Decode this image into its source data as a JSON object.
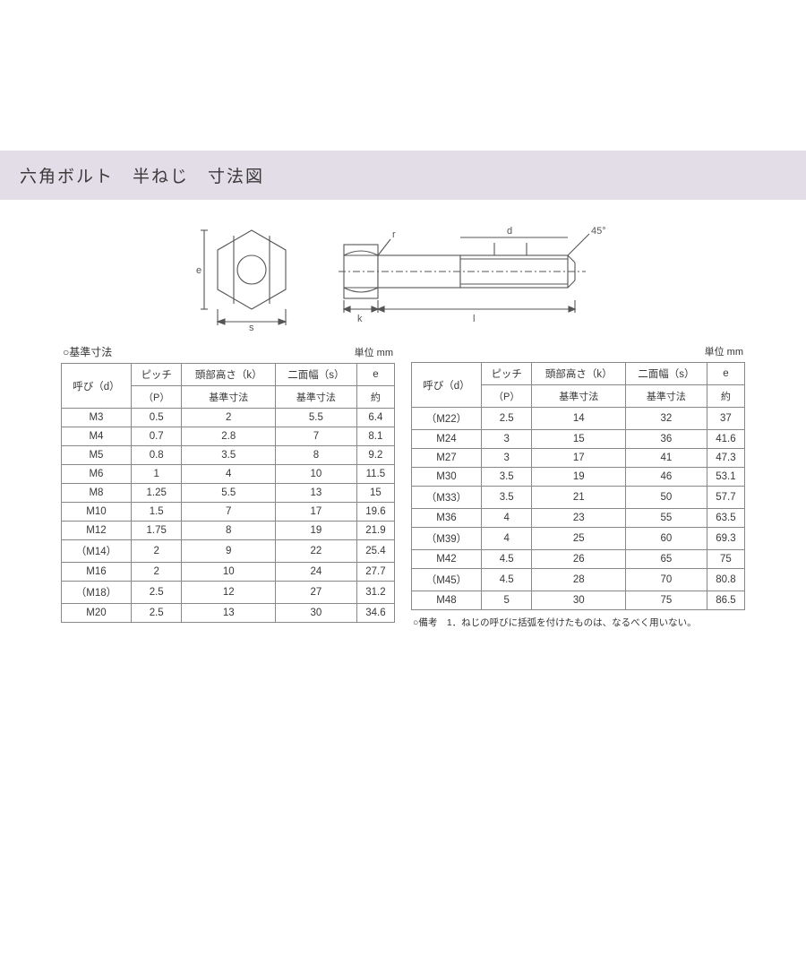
{
  "header": {
    "title": "六角ボルト　半ねじ　寸法図"
  },
  "diagram": {
    "labels": {
      "e": "e",
      "s": "s",
      "k": "k",
      "l": "l",
      "d": "d",
      "angle": "45°"
    },
    "stroke": "#555555",
    "fill": "#ffffff"
  },
  "table_common": {
    "unit_label": "単位 mm",
    "columns": {
      "yobi": "呼び（d）",
      "pitch_top": "ピッチ",
      "pitch_sub": "（P）",
      "head_top": "頭部高さ（k）",
      "head_sub": "基準寸法",
      "width_top": "二面幅（s）",
      "width_sub": "基準寸法",
      "e_top": "e",
      "e_sub": "約"
    }
  },
  "left_table": {
    "caption": "○基準寸法",
    "rows": [
      {
        "yobi": "M3",
        "pitch": "0.5",
        "k": "2",
        "s": "5.5",
        "e": "6.4"
      },
      {
        "yobi": "M4",
        "pitch": "0.7",
        "k": "2.8",
        "s": "7",
        "e": "8.1"
      },
      {
        "yobi": "M5",
        "pitch": "0.8",
        "k": "3.5",
        "s": "8",
        "e": "9.2"
      },
      {
        "yobi": "M6",
        "pitch": "1",
        "k": "4",
        "s": "10",
        "e": "11.5"
      },
      {
        "yobi": "M8",
        "pitch": "1.25",
        "k": "5.5",
        "s": "13",
        "e": "15"
      },
      {
        "yobi": "M10",
        "pitch": "1.5",
        "k": "7",
        "s": "17",
        "e": "19.6"
      },
      {
        "yobi": "M12",
        "pitch": "1.75",
        "k": "8",
        "s": "19",
        "e": "21.9"
      },
      {
        "yobi": "（M14）",
        "pitch": "2",
        "k": "9",
        "s": "22",
        "e": "25.4"
      },
      {
        "yobi": "M16",
        "pitch": "2",
        "k": "10",
        "s": "24",
        "e": "27.7"
      },
      {
        "yobi": "（M18）",
        "pitch": "2.5",
        "k": "12",
        "s": "27",
        "e": "31.2"
      },
      {
        "yobi": "M20",
        "pitch": "2.5",
        "k": "13",
        "s": "30",
        "e": "34.6"
      }
    ]
  },
  "right_table": {
    "caption": "",
    "rows": [
      {
        "yobi": "（M22）",
        "pitch": "2.5",
        "k": "14",
        "s": "32",
        "e": "37"
      },
      {
        "yobi": "M24",
        "pitch": "3",
        "k": "15",
        "s": "36",
        "e": "41.6"
      },
      {
        "yobi": "M27",
        "pitch": "3",
        "k": "17",
        "s": "41",
        "e": "47.3"
      },
      {
        "yobi": "M30",
        "pitch": "3.5",
        "k": "19",
        "s": "46",
        "e": "53.1"
      },
      {
        "yobi": "（M33）",
        "pitch": "3.5",
        "k": "21",
        "s": "50",
        "e": "57.7"
      },
      {
        "yobi": "M36",
        "pitch": "4",
        "k": "23",
        "s": "55",
        "e": "63.5"
      },
      {
        "yobi": "（M39）",
        "pitch": "4",
        "k": "25",
        "s": "60",
        "e": "69.3"
      },
      {
        "yobi": "M42",
        "pitch": "4.5",
        "k": "26",
        "s": "65",
        "e": "75"
      },
      {
        "yobi": "（M45）",
        "pitch": "4.5",
        "k": "28",
        "s": "70",
        "e": "80.8"
      },
      {
        "yobi": "M48",
        "pitch": "5",
        "k": "30",
        "s": "75",
        "e": "86.5"
      }
    ],
    "note": "○備考　1．ねじの呼びに括弧を付けたものは、なるべく用いない。"
  },
  "colors": {
    "header_bg": "#e3dde8",
    "border": "#888888",
    "text": "#383838"
  }
}
